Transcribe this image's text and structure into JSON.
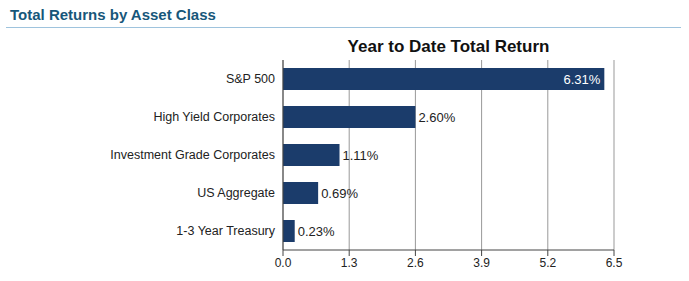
{
  "header": {
    "title": "Total Returns by Asset Class"
  },
  "chart_data": {
    "type": "bar",
    "title": "Year to Date Total Return",
    "orientation": "horizontal",
    "categories": [
      "S&P 500",
      "High Yield Corporates",
      "Investment Grade Corporates",
      "US Aggregate",
      "1-3 Year Treasury"
    ],
    "values": [
      6.31,
      2.6,
      1.11,
      0.69,
      0.23
    ],
    "value_labels": [
      "6.31%",
      "2.60%",
      "1.11%",
      "0.69%",
      "0.23%"
    ],
    "data_labels": true,
    "color": "#1b3c6b",
    "xlim": [
      0,
      6.5
    ],
    "xticks": [
      {
        "value": 0,
        "label": "0.0"
      },
      1.3,
      2.6,
      3.9,
      5.2,
      6.5
    ],
    "grid": true
  }
}
